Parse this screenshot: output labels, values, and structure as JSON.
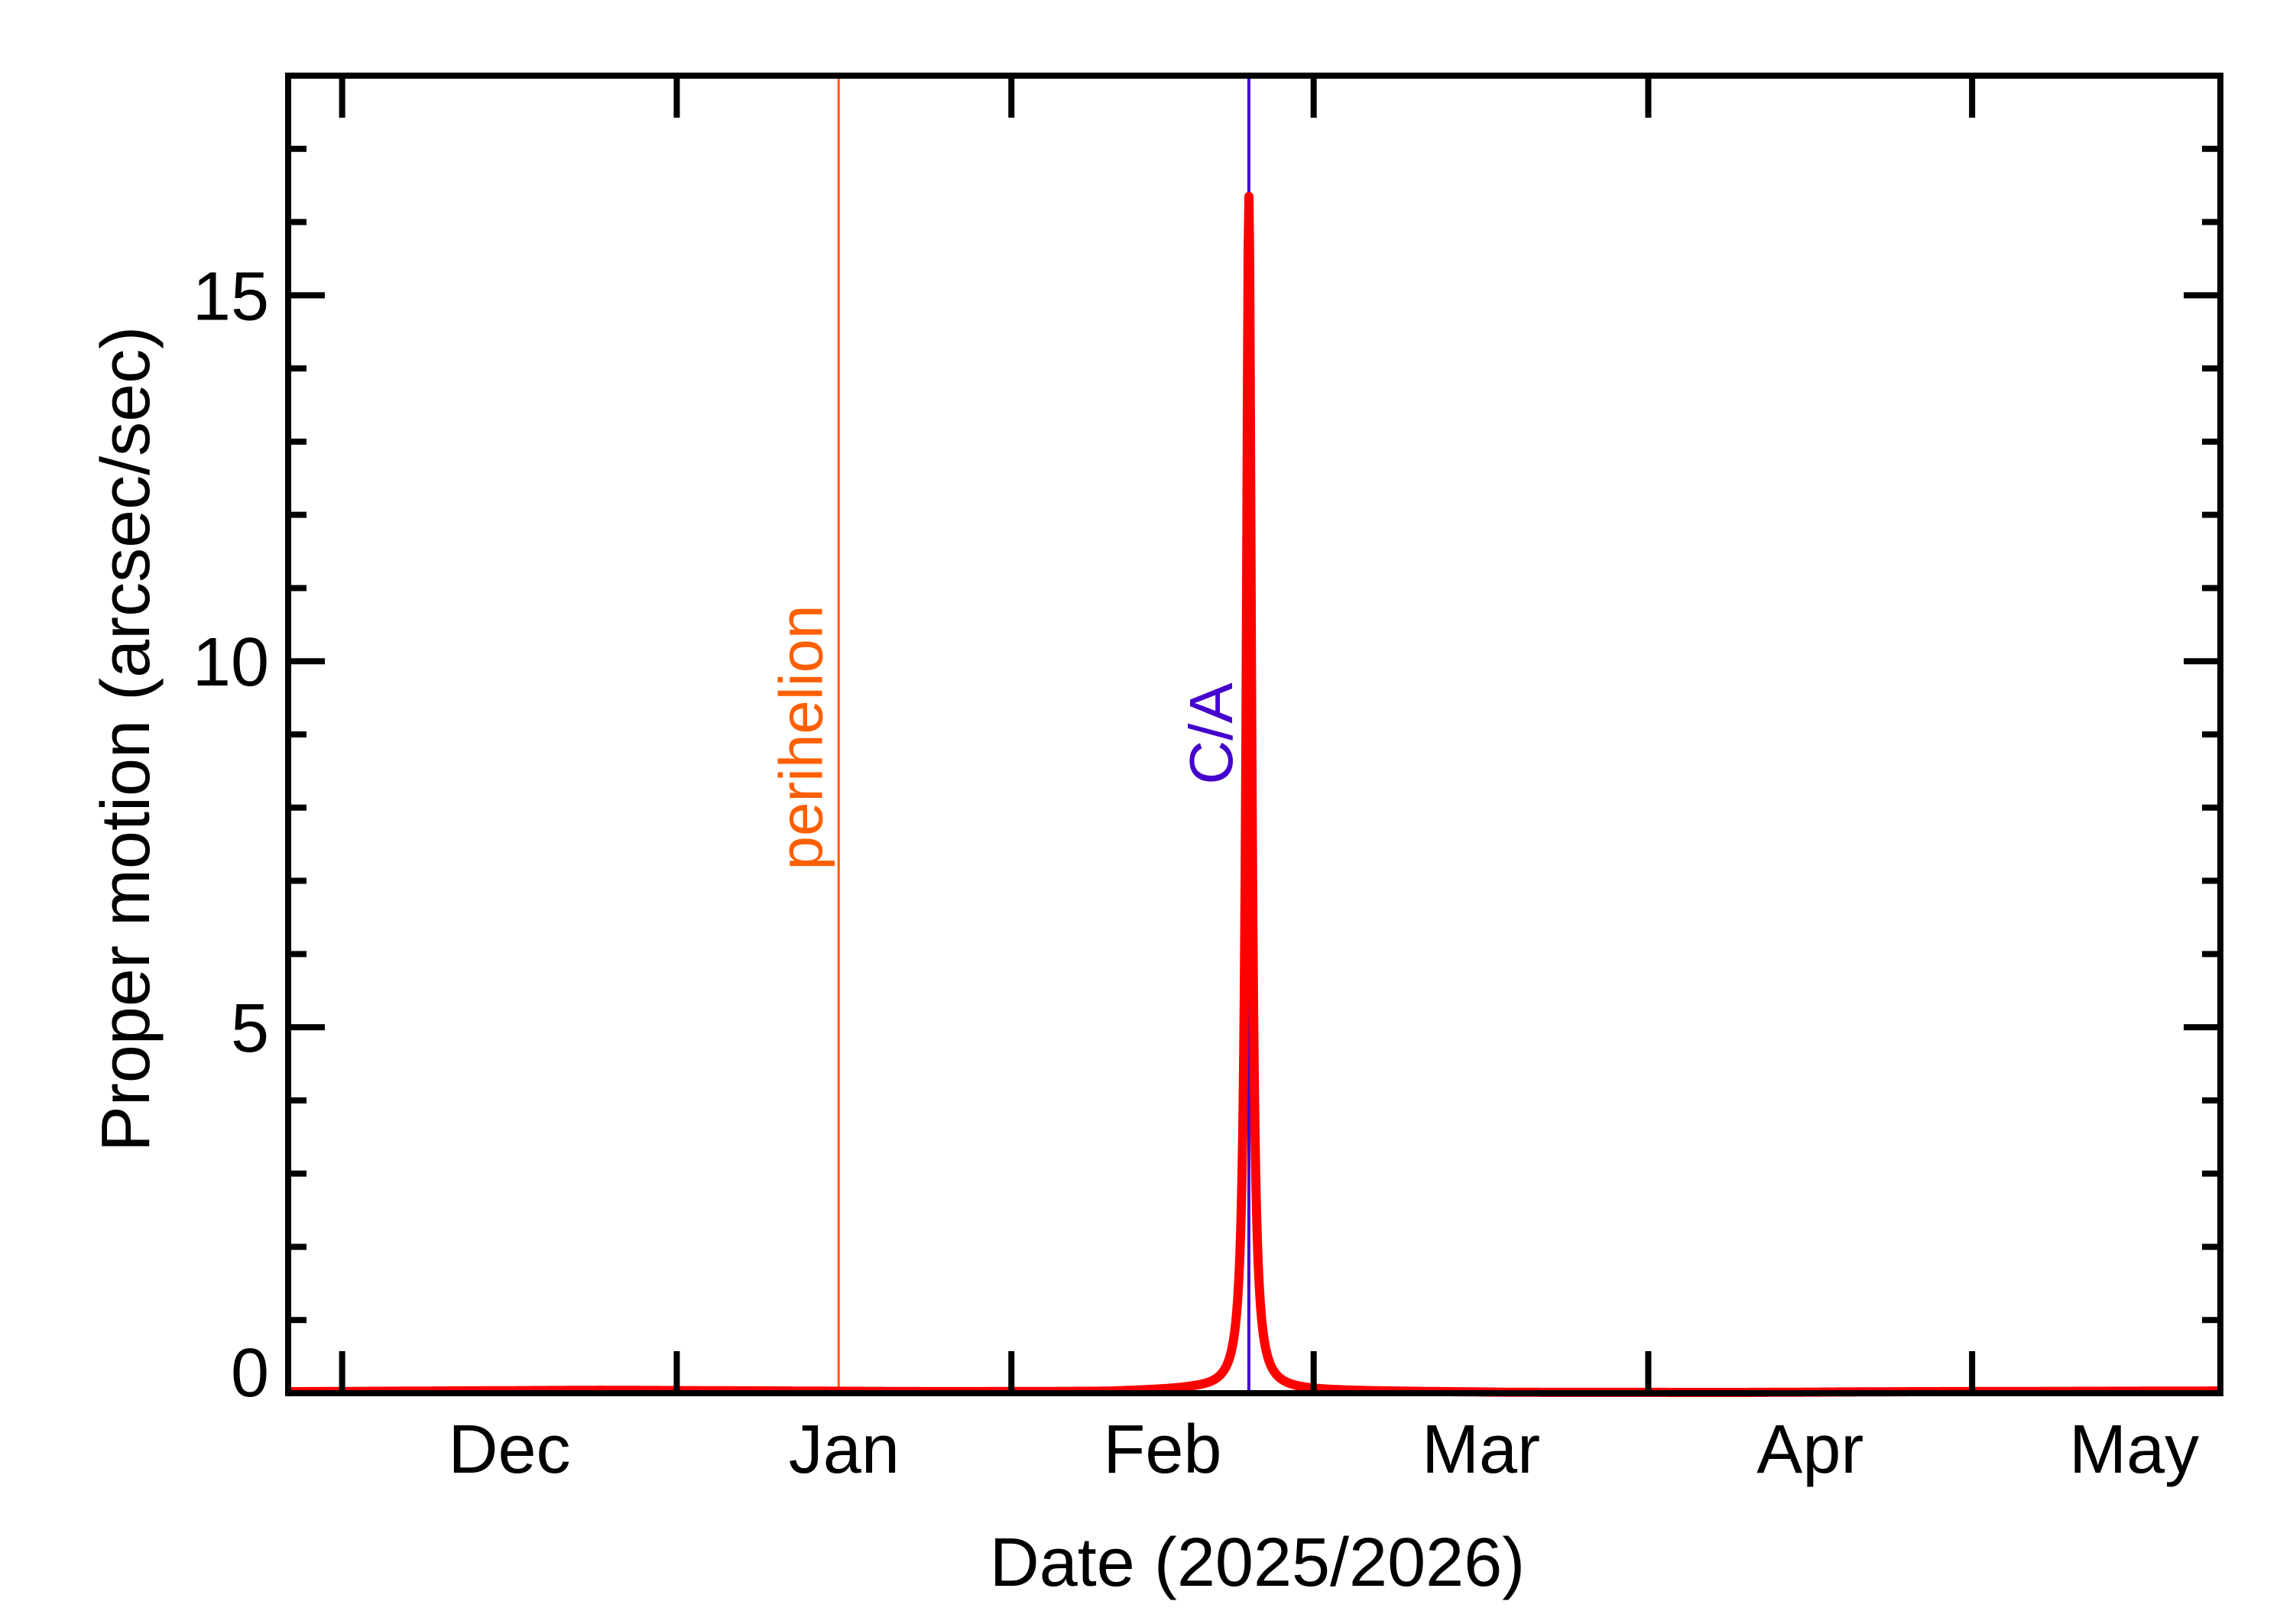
{
  "chart_data": {
    "type": "line",
    "title": "",
    "xlabel": "Date (2025/2026)",
    "ylabel": "Proper motion (arcsec/sec)",
    "xlim": [
      "2025-11-26",
      "2026-05-24"
    ],
    "ylim": [
      0,
      18
    ],
    "grid": false,
    "legend": null,
    "x_ticks": [
      {
        "date": "2025-12-01",
        "label": "Dec"
      },
      {
        "date": "2026-01-01",
        "label": "Jan"
      },
      {
        "date": "2026-02-01",
        "label": "Feb"
      },
      {
        "date": "2026-03-01",
        "label": "Mar"
      },
      {
        "date": "2026-04-01",
        "label": "Apr"
      },
      {
        "date": "2026-05-01",
        "label": "May"
      }
    ],
    "y_ticks": [
      {
        "value": 0,
        "label": "0"
      },
      {
        "value": 5,
        "label": "5"
      },
      {
        "value": 10,
        "label": "10"
      },
      {
        "value": 15,
        "label": "15"
      }
    ],
    "y_minor_step": 1,
    "series": [
      {
        "name": "Proper motion",
        "color": "#FF0000",
        "peak": {
          "date": "2026-02-23",
          "value": 16.35
        },
        "points": [
          {
            "date": "2025-11-26",
            "value": 0.02
          },
          {
            "date": "2025-12-10",
            "value": 0.03
          },
          {
            "date": "2025-12-25",
            "value": 0.04
          },
          {
            "date": "2026-01-10",
            "value": 0.03
          },
          {
            "date": "2026-01-25",
            "value": 0.02
          },
          {
            "date": "2026-02-10",
            "value": 0.02
          },
          {
            "date": "2026-02-18",
            "value": 0.05
          },
          {
            "date": "2026-02-20",
            "value": 0.1
          },
          {
            "date": "2026-02-21",
            "value": 0.2
          },
          {
            "date": "2026-02-22",
            "value": 0.77
          },
          {
            "date": "2026-02-23",
            "value": 16.35
          },
          {
            "date": "2026-02-24",
            "value": 0.77
          },
          {
            "date": "2026-02-25",
            "value": 0.2
          },
          {
            "date": "2026-02-26",
            "value": 0.1
          },
          {
            "date": "2026-03-01",
            "value": 0.03
          },
          {
            "date": "2026-03-20",
            "value": 0.01
          },
          {
            "date": "2026-04-10",
            "value": 0.01
          },
          {
            "date": "2026-04-25",
            "value": 0.02
          },
          {
            "date": "2026-05-24",
            "value": 0.03
          }
        ]
      }
    ],
    "annotations": [
      {
        "type": "vline",
        "label": "perihelion",
        "date": "2026-01-16",
        "color": "#FF5F00"
      },
      {
        "type": "vline",
        "label": "C/A",
        "date": "2026-02-23",
        "color": "#4400CC"
      }
    ]
  }
}
